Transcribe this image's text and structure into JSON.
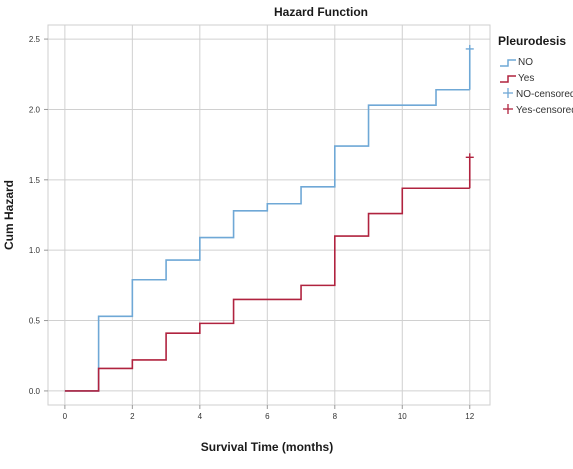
{
  "chart_data": {
    "type": "line",
    "step": true,
    "title": "Hazard Function",
    "xlabel": "Survival Time (months)",
    "ylabel": "Cum Hazard",
    "xlim": [
      -0.5,
      12.6
    ],
    "ylim": [
      -0.1,
      2.6
    ],
    "xticks": [
      0,
      2,
      4,
      6,
      8,
      10,
      12
    ],
    "yticks": [
      0.0,
      0.5,
      1.0,
      1.5,
      2.0,
      2.5
    ],
    "ytick_labels": [
      "0.0",
      "0.5",
      "1.0",
      "1.5",
      "2.0",
      "2.5"
    ],
    "grid": true,
    "legend": {
      "title": "Pleurodesis",
      "placement": "right",
      "entries": [
        "NO",
        "Yes",
        "NO-censored",
        "Yes-censored"
      ]
    },
    "series": [
      {
        "name": "NO",
        "color": "#6fa8d6",
        "x": [
          0,
          1,
          2,
          3,
          4,
          5,
          6,
          7,
          8,
          9,
          10,
          11,
          12
        ],
        "y": [
          0.0,
          0.53,
          0.79,
          0.93,
          1.09,
          1.28,
          1.33,
          1.45,
          1.74,
          2.03,
          2.03,
          2.14,
          2.14
        ],
        "censored": [
          {
            "x": 12,
            "y": 2.43
          }
        ]
      },
      {
        "name": "Yes",
        "color": "#b0233f",
        "x": [
          0,
          1,
          2,
          3,
          4,
          5,
          6,
          7,
          8,
          9,
          10,
          11,
          12
        ],
        "y": [
          0.0,
          0.16,
          0.22,
          0.41,
          0.48,
          0.65,
          0.65,
          0.75,
          1.1,
          1.26,
          1.44,
          1.44,
          1.44
        ],
        "censored": [
          {
            "x": 12,
            "y": 1.66
          }
        ]
      }
    ]
  }
}
